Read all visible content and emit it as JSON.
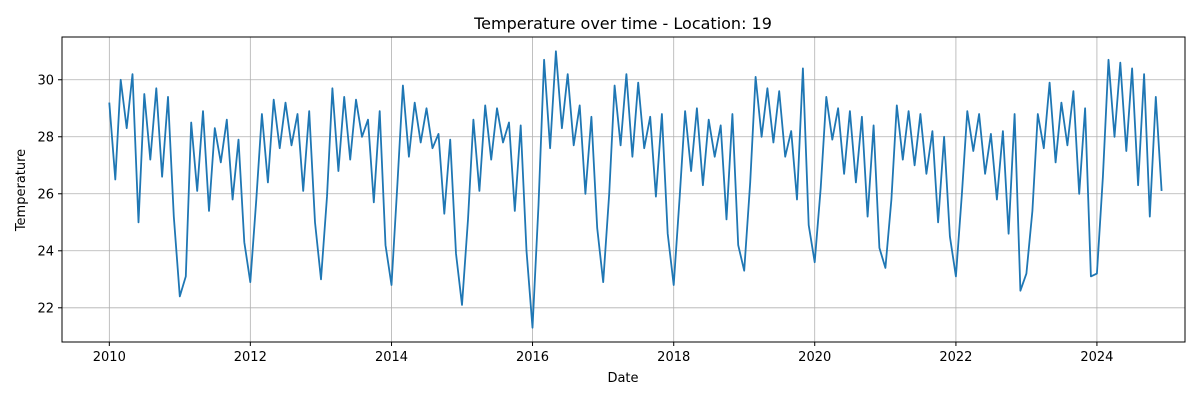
{
  "chart_data": {
    "type": "line",
    "title": "Temperature over time - Location: 19",
    "xlabel": "Date",
    "ylabel": "Temperature",
    "xlim": [
      "2009-05-01",
      "2025-04-01"
    ],
    "ylim": [
      20.8,
      31.5
    ],
    "x_ticks": [
      "2010",
      "2012",
      "2014",
      "2016",
      "2018",
      "2020",
      "2022",
      "2024"
    ],
    "y_ticks": [
      "22",
      "24",
      "26",
      "28",
      "30"
    ],
    "grid": true,
    "series": [
      {
        "color": "#1f77b4",
        "x": [
          "2010-01-01",
          "2010-02-01",
          "2010-03-01",
          "2010-04-01",
          "2010-05-01",
          "2010-06-01",
          "2010-07-01",
          "2010-08-01",
          "2010-09-01",
          "2010-10-01",
          "2010-11-01",
          "2010-12-01",
          "2011-01-01",
          "2011-02-01",
          "2011-03-01",
          "2011-04-01",
          "2011-05-01",
          "2011-06-01",
          "2011-07-01",
          "2011-08-01",
          "2011-09-01",
          "2011-10-01",
          "2011-11-01",
          "2011-12-01",
          "2012-01-01",
          "2012-02-01",
          "2012-03-01",
          "2012-04-01",
          "2012-05-01",
          "2012-06-01",
          "2012-07-01",
          "2012-08-01",
          "2012-09-01",
          "2012-10-01",
          "2012-11-01",
          "2012-12-01",
          "2013-01-01",
          "2013-02-01",
          "2013-03-01",
          "2013-04-01",
          "2013-05-01",
          "2013-06-01",
          "2013-07-01",
          "2013-08-01",
          "2013-09-01",
          "2013-10-01",
          "2013-11-01",
          "2013-12-01",
          "2014-01-01",
          "2014-02-01",
          "2014-03-01",
          "2014-04-01",
          "2014-05-01",
          "2014-06-01",
          "2014-07-01",
          "2014-08-01",
          "2014-09-01",
          "2014-10-01",
          "2014-11-01",
          "2014-12-01",
          "2015-01-01",
          "2015-02-01",
          "2015-03-01",
          "2015-04-01",
          "2015-05-01",
          "2015-06-01",
          "2015-07-01",
          "2015-08-01",
          "2015-09-01",
          "2015-10-01",
          "2015-11-01",
          "2015-12-01",
          "2016-01-01",
          "2016-02-01",
          "2016-03-01",
          "2016-04-01",
          "2016-05-01",
          "2016-06-01",
          "2016-07-01",
          "2016-08-01",
          "2016-09-01",
          "2016-10-01",
          "2016-11-01",
          "2016-12-01",
          "2017-01-01",
          "2017-02-01",
          "2017-03-01",
          "2017-04-01",
          "2017-05-01",
          "2017-06-01",
          "2017-07-01",
          "2017-08-01",
          "2017-09-01",
          "2017-10-01",
          "2017-11-01",
          "2017-12-01",
          "2018-01-01",
          "2018-02-01",
          "2018-03-01",
          "2018-04-01",
          "2018-05-01",
          "2018-06-01",
          "2018-07-01",
          "2018-08-01",
          "2018-09-01",
          "2018-10-01",
          "2018-11-01",
          "2018-12-01",
          "2019-01-01",
          "2019-02-01",
          "2019-03-01",
          "2019-04-01",
          "2019-05-01",
          "2019-06-01",
          "2019-07-01",
          "2019-08-01",
          "2019-09-01",
          "2019-10-01",
          "2019-11-01",
          "2019-12-01",
          "2020-01-01",
          "2020-02-01",
          "2020-03-01",
          "2020-04-01",
          "2020-05-01",
          "2020-06-01",
          "2020-07-01",
          "2020-08-01",
          "2020-09-01",
          "2020-10-01",
          "2020-11-01",
          "2020-12-01",
          "2021-01-01",
          "2021-02-01",
          "2021-03-01",
          "2021-04-01",
          "2021-05-01",
          "2021-06-01",
          "2021-07-01",
          "2021-08-01",
          "2021-09-01",
          "2021-10-01",
          "2021-11-01",
          "2021-12-01",
          "2022-01-01",
          "2022-02-01",
          "2022-03-01",
          "2022-04-01",
          "2022-05-01",
          "2022-06-01",
          "2022-07-01",
          "2022-08-01",
          "2022-09-01",
          "2022-10-01",
          "2022-11-01",
          "2022-12-01",
          "2023-01-01",
          "2023-02-01",
          "2023-03-01",
          "2023-04-01",
          "2023-05-01",
          "2023-06-01",
          "2023-07-01",
          "2023-08-01",
          "2023-09-01",
          "2023-10-01",
          "2023-11-01",
          "2023-12-01",
          "2024-01-01",
          "2024-02-01",
          "2024-03-01",
          "2024-04-01",
          "2024-05-01",
          "2024-06-01",
          "2024-07-01",
          "2024-08-01",
          "2024-09-01",
          "2024-10-01",
          "2024-11-01",
          "2024-12-01"
        ],
        "y": [
          29.2,
          26.5,
          30.0,
          28.3,
          30.2,
          25.0,
          29.5,
          27.2,
          29.7,
          26.6,
          29.4,
          25.2,
          22.4,
          23.1,
          28.5,
          26.1,
          28.9,
          25.4,
          28.3,
          27.1,
          28.6,
          25.8,
          27.9,
          24.3,
          22.9,
          25.8,
          28.8,
          26.4,
          29.3,
          27.6,
          29.2,
          27.7,
          28.8,
          26.1,
          28.9,
          25.0,
          23.0,
          25.9,
          29.7,
          26.8,
          29.4,
          27.2,
          29.3,
          28.0,
          28.6,
          25.7,
          28.9,
          24.2,
          22.8,
          26.4,
          29.8,
          27.3,
          29.2,
          27.8,
          29.0,
          27.6,
          28.1,
          25.3,
          27.9,
          23.9,
          22.1,
          25.1,
          28.6,
          26.1,
          29.1,
          27.2,
          29.0,
          27.8,
          28.5,
          25.4,
          28.4,
          24.0,
          21.3,
          25.6,
          30.7,
          27.6,
          31.0,
          28.3,
          30.2,
          27.7,
          29.1,
          26.0,
          28.7,
          24.8,
          22.9,
          26.0,
          29.8,
          27.7,
          30.2,
          27.3,
          29.9,
          27.6,
          28.7,
          25.9,
          28.8,
          24.6,
          22.8,
          25.9,
          28.9,
          26.8,
          29.0,
          26.3,
          28.6,
          27.3,
          28.4,
          25.1,
          28.8,
          24.2,
          23.3,
          26.4,
          30.1,
          28.0,
          29.7,
          27.8,
          29.6,
          27.3,
          28.2,
          25.8,
          30.4,
          24.9,
          23.6,
          26.2,
          29.4,
          27.9,
          29.0,
          26.7,
          28.9,
          26.4,
          28.7,
          25.2,
          28.4,
          24.1,
          23.4,
          25.8,
          29.1,
          27.2,
          28.9,
          27.0,
          28.8,
          26.7,
          28.2,
          25.0,
          28.0,
          24.5,
          23.1,
          26.0,
          28.9,
          27.5,
          28.8,
          26.7,
          28.1,
          25.8,
          28.2,
          24.6,
          28.8,
          22.6,
          23.2,
          25.4,
          28.8,
          27.6,
          29.9,
          27.1,
          29.2,
          27.7,
          29.6,
          26.0,
          29.0,
          23.1,
          23.2,
          26.6,
          30.7,
          28.0,
          30.6,
          27.5,
          30.4,
          26.3,
          30.2,
          25.2,
          29.4,
          26.1
        ]
      }
    ]
  }
}
